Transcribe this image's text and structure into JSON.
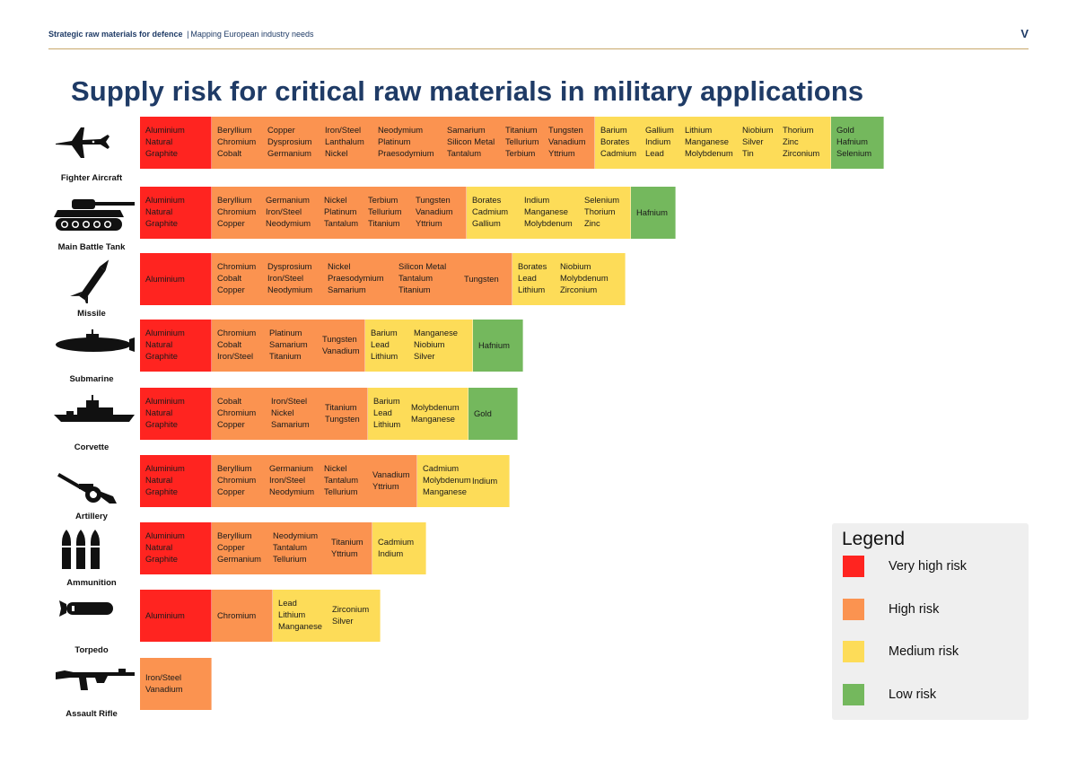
{
  "header": {
    "report_bold": "Strategic raw materials for defence",
    "report_rest": "Mapping European industry needs",
    "page_number": "V"
  },
  "title": "Supply risk for critical raw materials in military applications",
  "legend": {
    "title": "Legend",
    "items": [
      {
        "label": "Very high risk",
        "color": "#ff2420"
      },
      {
        "label": "High risk",
        "color": "#fb9350"
      },
      {
        "label": "Medium risk",
        "color": "#fddc58"
      },
      {
        "label": "Low risk",
        "color": "#74b85d"
      }
    ]
  },
  "chart_data": {
    "type": "table",
    "categories": [
      "Very high risk",
      "High risk",
      "Medium risk",
      "Low risk"
    ],
    "rows": [
      {
        "application": "Fighter Aircraft",
        "icon": "fighter-aircraft-icon",
        "very_high": [
          [
            "Aluminium",
            "Natural",
            "Graphite"
          ]
        ],
        "high": [
          [
            "Beryllium",
            "Chromium",
            "Cobalt"
          ],
          [
            "Copper",
            "Dysprosium",
            "Germanium"
          ],
          [
            "Iron/Steel",
            "Lanthalum",
            "Nickel"
          ],
          [
            "Neodymium",
            "Platinum",
            "Praesodymium"
          ],
          [
            "Samarium",
            "Silicon Metal",
            "Tantalum"
          ],
          [
            "Titanium",
            "Tellurium",
            "Terbium"
          ],
          [
            "Tungsten",
            "Vanadium",
            "Yttrium"
          ]
        ],
        "medium": [
          [
            "Barium",
            "Borates",
            "Cadmium"
          ],
          [
            "Gallium",
            "Indium",
            "Lead"
          ],
          [
            "Lithium",
            "Manganese",
            "Molybdenum"
          ],
          [
            "Niobium",
            "Silver",
            "Tin"
          ],
          [
            "Thorium",
            "Zinc",
            "Zirconium"
          ]
        ],
        "low": [
          [
            "Gold",
            "Hafnium",
            "Selenium"
          ]
        ]
      },
      {
        "application": "Main Battle Tank",
        "icon": "tank-icon",
        "very_high": [
          [
            "Aluminium",
            "Natural",
            "Graphite"
          ]
        ],
        "high": [
          [
            "Beryllium",
            "Chromium",
            "Copper"
          ],
          [
            "Germanium",
            "Iron/Steel",
            "Neodymium"
          ],
          [
            "Nickel",
            "Platinum",
            "Tantalum"
          ],
          [
            "Terbium",
            "Tellurium",
            "Titanium"
          ],
          [
            "Tungsten",
            "Vanadium",
            "Yttrium"
          ]
        ],
        "medium": [
          [
            "Borates",
            "Cadmium",
            "Gallium"
          ],
          [
            "Indium",
            "Manganese",
            "Molybdenum"
          ],
          [
            "Selenium",
            "Thorium",
            "Zinc"
          ]
        ],
        "low": [
          [
            "Hafnium"
          ]
        ]
      },
      {
        "application": "Missile",
        "icon": "missile-icon",
        "very_high": [
          [
            "Aluminium"
          ]
        ],
        "high": [
          [
            "Chromium",
            "Cobalt",
            "Copper"
          ],
          [
            "Dysprosium",
            "Iron/Steel",
            "Neodymium"
          ],
          [
            "Nickel",
            "Praesodymium",
            "Samarium"
          ],
          [
            "Silicon Metal",
            "Tantalum",
            "Titanium"
          ],
          [
            "Tungsten"
          ]
        ],
        "medium": [
          [
            "Borates",
            "Lead",
            "Lithium"
          ],
          [
            "Niobium",
            "Molybdenum",
            "Zirconium"
          ]
        ],
        "low": []
      },
      {
        "application": "Submarine",
        "icon": "submarine-icon",
        "very_high": [
          [
            "Aluminium",
            "Natural",
            "Graphite"
          ]
        ],
        "high": [
          [
            "Chromium",
            "Cobalt",
            "Iron/Steel"
          ],
          [
            "Platinum",
            "Samarium",
            "Titanium"
          ],
          [
            "Tungsten",
            "Vanadium"
          ]
        ],
        "medium": [
          [
            "Barium",
            "Lead",
            "Lithium"
          ],
          [
            "Manganese",
            "Niobium",
            "Silver"
          ]
        ],
        "low": [
          [
            "Hafnium"
          ]
        ]
      },
      {
        "application": "Corvette",
        "icon": "corvette-icon",
        "very_high": [
          [
            "Aluminium",
            "Natural",
            "Graphite"
          ]
        ],
        "high": [
          [
            "Cobalt",
            "Chromium",
            "Copper"
          ],
          [
            "Iron/Steel",
            "Nickel",
            "Samarium"
          ],
          [
            "Titanium",
            "Tungsten"
          ]
        ],
        "medium": [
          [
            "Barium",
            "Lead",
            "Lithium"
          ],
          [
            "Molybdenum",
            "Manganese"
          ]
        ],
        "low": [
          [
            "Gold"
          ]
        ]
      },
      {
        "application": "Artillery",
        "icon": "artillery-icon",
        "very_high": [
          [
            "Aluminium",
            "Natural",
            "Graphite"
          ]
        ],
        "high": [
          [
            "Beryllium",
            "Chromium",
            "Copper"
          ],
          [
            "Germanium",
            "Iron/Steel",
            "Neodymium"
          ],
          [
            "Nickel",
            "Tantalum",
            "Tellurium"
          ],
          [
            "Vanadium",
            "Yttrium"
          ]
        ],
        "medium": [
          [
            "Cadmium",
            "Molybdenum",
            "Manganese"
          ],
          [
            "Indium"
          ]
        ],
        "low": []
      },
      {
        "application": "Ammunition",
        "icon": "ammunition-icon",
        "very_high": [
          [
            "Aluminium",
            "Natural",
            "Graphite"
          ]
        ],
        "high": [
          [
            "Beryllium",
            "Copper",
            "Germanium"
          ],
          [
            "Neodymium",
            "Tantalum",
            "Tellurium"
          ],
          [
            "Titanium",
            "Yttrium"
          ]
        ],
        "medium": [
          [
            "Cadmium",
            "Indium"
          ]
        ],
        "low": []
      },
      {
        "application": "Torpedo",
        "icon": "torpedo-icon",
        "very_high": [
          [
            "Aluminium"
          ]
        ],
        "high": [
          [
            "Chromium"
          ]
        ],
        "medium": [
          [
            "Lead",
            "Lithium",
            "Manganese"
          ],
          [
            "Zirconium",
            "Silver"
          ]
        ],
        "low": []
      },
      {
        "application": "Assault Rifle",
        "icon": "assault-rifle-icon",
        "very_high": [],
        "high": [
          [
            "Iron/Steel",
            "Vanadium"
          ]
        ],
        "medium": [],
        "low": []
      }
    ]
  }
}
